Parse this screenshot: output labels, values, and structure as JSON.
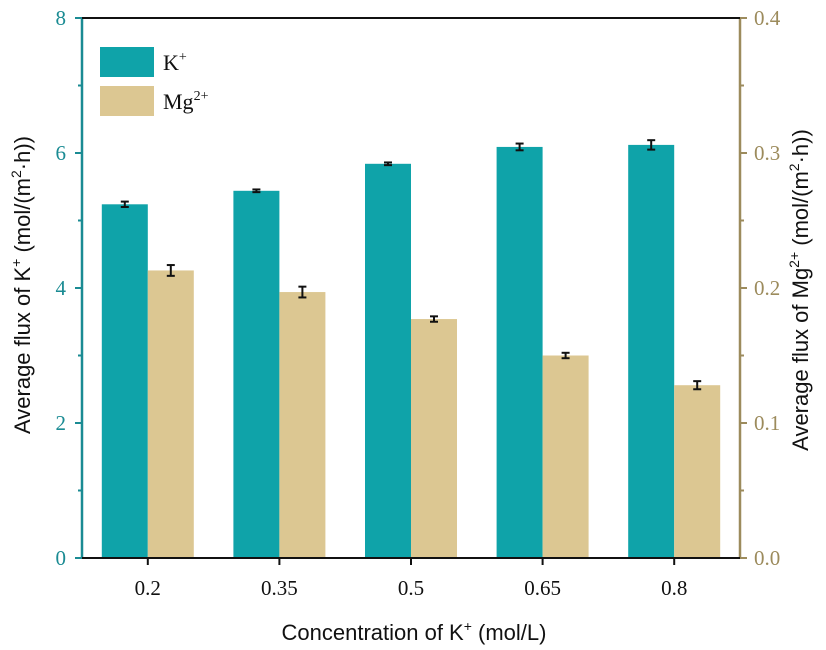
{
  "chart_data": {
    "type": "bar",
    "categories": [
      "0.2",
      "0.35",
      "0.5",
      "0.65",
      "0.8"
    ],
    "series": [
      {
        "name": "K",
        "name_sup": "+",
        "axis": "left",
        "color": "#0fa3a9",
        "values": [
          5.24,
          5.44,
          5.84,
          6.09,
          6.12
        ],
        "errors": [
          0.04,
          0.02,
          0.02,
          0.05,
          0.07
        ]
      },
      {
        "name": "Mg",
        "name_sup": "2+",
        "axis": "right",
        "color": "#dcc792",
        "values": [
          0.213,
          0.197,
          0.177,
          0.15,
          0.128
        ],
        "errors": [
          0.004,
          0.004,
          0.002,
          0.002,
          0.003
        ]
      }
    ],
    "left_axis": {
      "ylim": [
        0,
        8
      ],
      "ticks": [
        "0",
        "2",
        "4",
        "6",
        "8"
      ],
      "label_pre": "Average flux of K",
      "label_sup": "+",
      "label_mid": " (mol/(m",
      "label_sup2": "2",
      "label_post": "·h))",
      "color": "#1a8b93"
    },
    "right_axis": {
      "ylim": [
        0,
        0.4
      ],
      "ticks": [
        "0.0",
        "0.1",
        "0.2",
        "0.3",
        "0.4"
      ],
      "label_pre": "Average flux of Mg",
      "label_sup": "2+",
      "label_mid": " (mol/(m",
      "label_sup2": "2",
      "label_post": "·h))",
      "color": "#9c8b5c"
    },
    "x_axis": {
      "label_pre": "Concentration of K",
      "label_sup": "+",
      "label_post": " (mol/L)"
    },
    "grid": false,
    "legend_position": "top-left"
  }
}
